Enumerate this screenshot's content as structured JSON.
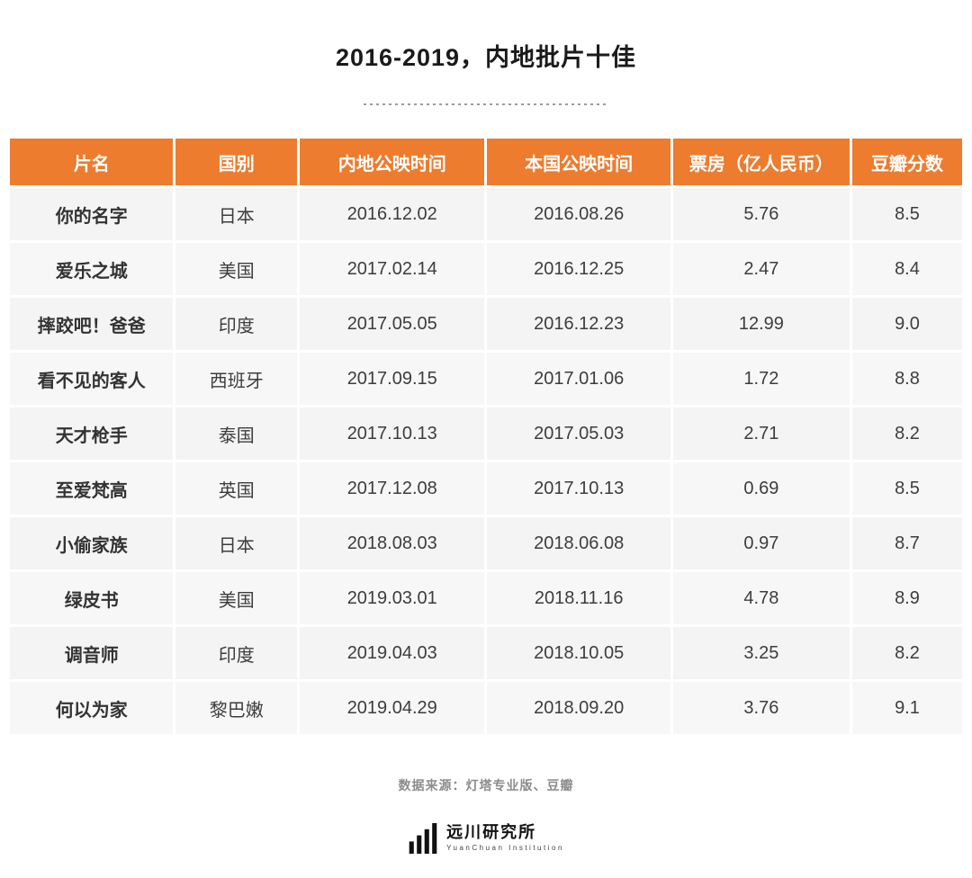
{
  "page": {
    "title": "2016-2019，内地批片十佳",
    "source_note": "数据来源：灯塔专业版、豆瓣"
  },
  "chart_data": {
    "type": "table",
    "title": "2016-2019，内地批片十佳",
    "headers": [
      "片名",
      "国别",
      "内地公映时间",
      "本国公映时间",
      "票房（亿人民币）",
      "豆瓣分数"
    ],
    "rows": [
      [
        "你的名字",
        "日本",
        "2016.12.02",
        "2016.08.26",
        "5.76",
        "8.5"
      ],
      [
        "爱乐之城",
        "美国",
        "2017.02.14",
        "2016.12.25",
        "2.47",
        "8.4"
      ],
      [
        "摔跤吧！爸爸",
        "印度",
        "2017.05.05",
        "2016.12.23",
        "12.99",
        "9.0"
      ],
      [
        "看不见的客人",
        "西班牙",
        "2017.09.15",
        "2017.01.06",
        "1.72",
        "8.8"
      ],
      [
        "天才枪手",
        "泰国",
        "2017.10.13",
        "2017.05.03",
        "2.71",
        "8.2"
      ],
      [
        "至爱梵高",
        "英国",
        "2017.12.08",
        "2017.10.13",
        "0.69",
        "8.5"
      ],
      [
        "小偷家族",
        "日本",
        "2018.08.03",
        "2018.06.08",
        "0.97",
        "8.7"
      ],
      [
        "绿皮书",
        "美国",
        "2019.03.01",
        "2018.11.16",
        "4.78",
        "8.9"
      ],
      [
        "调音师",
        "印度",
        "2019.04.03",
        "2018.10.05",
        "3.25",
        "8.2"
      ],
      [
        "何以为家",
        "黎巴嫩",
        "2019.04.29",
        "2018.09.20",
        "3.76",
        "9.1"
      ]
    ]
  },
  "logo": {
    "name": "远川研究所",
    "subtitle": "YuanChuan Institution"
  },
  "colors": {
    "header_bg": "#ED7C2F",
    "header_text": "#FFFFFF",
    "row_bg": "#F4F4F4",
    "title_text": "#1A1A1A",
    "source_text": "#8C8C8C"
  }
}
